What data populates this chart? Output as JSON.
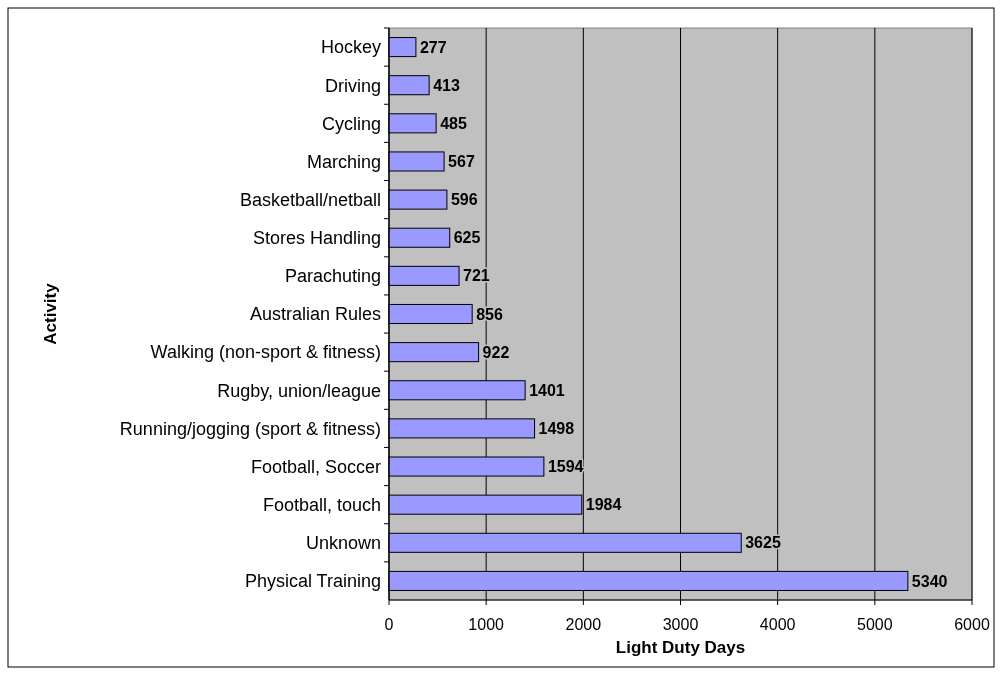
{
  "chart_data": {
    "type": "bar",
    "orientation": "horizontal",
    "xlabel": "Light Duty Days",
    "ylabel": "Activity",
    "categories": [
      "Hockey",
      "Driving",
      "Cycling",
      "Marching",
      "Basketball/netball",
      "Stores Handling",
      "Parachuting",
      "Australian Rules",
      "Walking (non-sport & fitness)",
      "Rugby, union/league",
      "Running/jogging (sport & fitness)",
      "Football, Soccer",
      "Football, touch",
      "Unknown",
      "Physical Training"
    ],
    "values": [
      277,
      413,
      485,
      567,
      596,
      625,
      721,
      856,
      922,
      1401,
      1498,
      1594,
      1984,
      3625,
      5340
    ],
    "color": "#9999ff",
    "xlim": [
      0,
      6000
    ],
    "xticks": [
      0,
      1000,
      2000,
      3000,
      4000,
      5000,
      6000
    ],
    "grid": "x",
    "data_labels": true
  }
}
